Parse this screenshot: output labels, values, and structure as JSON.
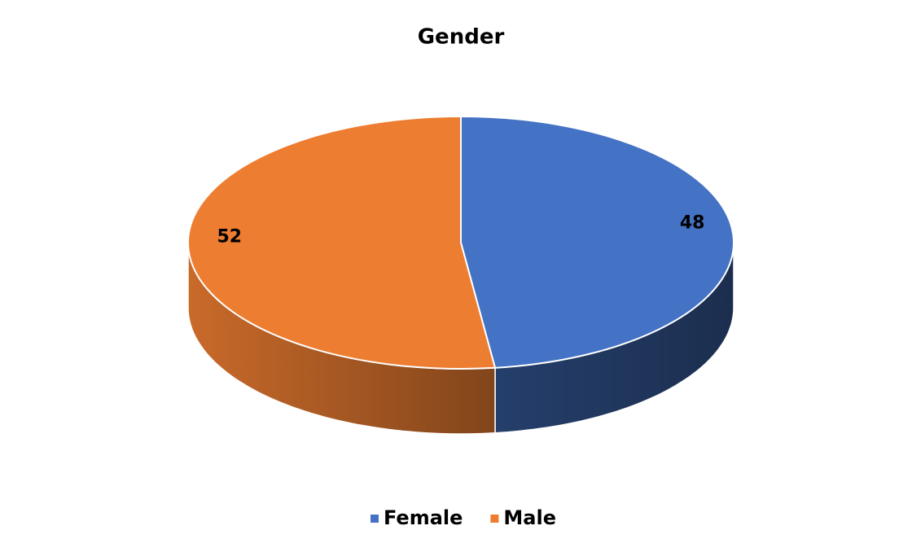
{
  "chart_data": {
    "type": "pie",
    "title": "Gender",
    "categories": [
      "Female",
      "Male"
    ],
    "values": [
      48,
      52
    ],
    "colors": [
      "#4472c4",
      "#ed7d31"
    ],
    "legend": "bottom"
  }
}
